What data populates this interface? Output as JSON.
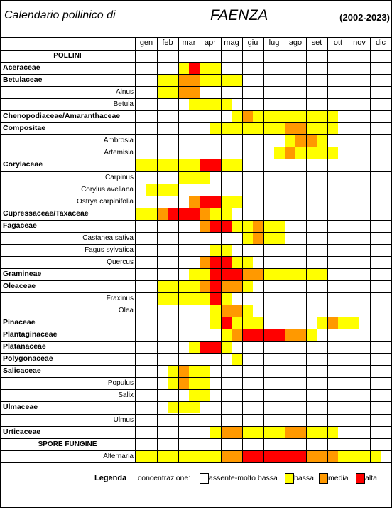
{
  "header": {
    "title_left": "Calendario pollinico di",
    "title_center": "FAENZA",
    "period": "(2002-2023)"
  },
  "months": [
    "gen",
    "feb",
    "mar",
    "apr",
    "mag",
    "giu",
    "lug",
    "ago",
    "set",
    "ott",
    "nov",
    "dic"
  ],
  "colors": {
    "none": "#ffffff",
    "bassa": "#ffff00",
    "media": "#ff9900",
    "alta": "#ff0000"
  },
  "rows": [
    {
      "label": "POLLINI",
      "kind": "section",
      "bars": []
    },
    {
      "label": "Aceraceae",
      "kind": "family",
      "bars": [
        [
          "mar1",
          "bassa"
        ],
        [
          "mar2",
          "alta"
        ],
        [
          "mar3",
          "media"
        ],
        [
          "apr1",
          "bassa"
        ],
        [
          "apr2",
          "bassa"
        ]
      ]
    },
    {
      "label": "Betulaceae",
      "kind": "family",
      "bars": [
        [
          "feb1",
          "bassa"
        ],
        [
          "feb2",
          "bassa"
        ],
        [
          "mar1",
          "media"
        ],
        [
          "mar2",
          "media"
        ],
        [
          "apr1",
          "bassa"
        ],
        [
          "apr2",
          "bassa"
        ],
        [
          "mag1",
          "bassa"
        ],
        [
          "mag2",
          "bassa"
        ]
      ]
    },
    {
      "label": "Alnus",
      "kind": "species",
      "bars": [
        [
          "feb1",
          "bassa"
        ],
        [
          "feb2",
          "bassa"
        ],
        [
          "mar1",
          "media"
        ],
        [
          "mar2",
          "media"
        ]
      ]
    },
    {
      "label": "Betula",
      "kind": "species",
      "bars": [
        [
          "mar2",
          "bassa"
        ],
        [
          "apr1",
          "bassa"
        ],
        [
          "apr2",
          "bassa"
        ],
        [
          "mag1",
          "bassa"
        ]
      ]
    },
    {
      "label": "Chenopodiaceae/Amaranthaceae",
      "kind": "family",
      "bars": [
        [
          "mag2",
          "bassa"
        ],
        [
          "giu1",
          "media"
        ],
        [
          "giu2",
          "bassa"
        ],
        [
          "lug1",
          "bassa"
        ],
        [
          "lug2",
          "bassa"
        ],
        [
          "ago1",
          "bassa"
        ],
        [
          "ago2",
          "bassa"
        ],
        [
          "set1",
          "bassa"
        ],
        [
          "set2",
          "bassa"
        ],
        [
          "ott1",
          "bassa"
        ]
      ]
    },
    {
      "label": "Compositae",
      "kind": "family",
      "bars": [
        [
          "apr2",
          "bassa"
        ],
        [
          "mag1",
          "bassa"
        ],
        [
          "mag2",
          "bassa"
        ],
        [
          "giu1",
          "bassa"
        ],
        [
          "giu2",
          "bassa"
        ],
        [
          "lug1",
          "bassa"
        ],
        [
          "lug2",
          "bassa"
        ],
        [
          "ago1",
          "media"
        ],
        [
          "ago2",
          "media"
        ],
        [
          "set1",
          "bassa"
        ],
        [
          "set2",
          "bassa"
        ],
        [
          "ott1",
          "bassa"
        ]
      ]
    },
    {
      "label": "Ambrosia",
      "kind": "species",
      "bars": [
        [
          "ago1",
          "bassa"
        ],
        [
          "ago2",
          "media"
        ],
        [
          "set1",
          "media"
        ],
        [
          "set2",
          "bassa"
        ]
      ]
    },
    {
      "label": "Artemisia",
      "kind": "species",
      "bars": [
        [
          "lug2",
          "bassa"
        ],
        [
          "ago1",
          "media"
        ],
        [
          "ago2",
          "bassa"
        ],
        [
          "set1",
          "bassa"
        ],
        [
          "set2",
          "bassa"
        ],
        [
          "ott1",
          "bassa"
        ]
      ]
    },
    {
      "label": "Corylaceae",
      "kind": "family",
      "bars": [
        [
          "gen1",
          "bassa"
        ],
        [
          "gen2",
          "bassa"
        ],
        [
          "feb1",
          "bassa"
        ],
        [
          "feb2",
          "bassa"
        ],
        [
          "mar1",
          "bassa"
        ],
        [
          "mar2",
          "bassa"
        ],
        [
          "apr1",
          "alta"
        ],
        [
          "apr2",
          "alta"
        ],
        [
          "mag1",
          "bassa"
        ],
        [
          "mag2",
          "bassa"
        ]
      ]
    },
    {
      "label": "Carpinus",
      "kind": "species",
      "bars": [
        [
          "mar1",
          "bassa"
        ],
        [
          "mar2",
          "bassa"
        ],
        [
          "apr1",
          "bassa"
        ]
      ]
    },
    {
      "label": "Corylus avellana",
      "kind": "species",
      "bars": [
        [
          "gen2",
          "bassa"
        ],
        [
          "feb1",
          "bassa"
        ],
        [
          "feb2",
          "bassa"
        ]
      ]
    },
    {
      "label": "Ostrya carpinifolia",
      "kind": "species",
      "bars": [
        [
          "mar2",
          "media"
        ],
        [
          "apr1",
          "alta"
        ],
        [
          "apr2",
          "alta"
        ],
        [
          "mag1",
          "bassa"
        ],
        [
          "mag2",
          "bassa"
        ]
      ]
    },
    {
      "label": "Cupressaceae/Taxaceae",
      "kind": "family",
      "bars": [
        [
          "gen1",
          "bassa"
        ],
        [
          "gen2",
          "bassa"
        ],
        [
          "feb1",
          "media"
        ],
        [
          "feb2",
          "alta"
        ],
        [
          "mar1",
          "alta"
        ],
        [
          "mar2",
          "alta"
        ],
        [
          "apr1",
          "media"
        ],
        [
          "apr2",
          "bassa"
        ],
        [
          "mag1",
          "bassa"
        ]
      ]
    },
    {
      "label": "Fagaceae",
      "kind": "family",
      "bars": [
        [
          "apr1",
          "media"
        ],
        [
          "apr2",
          "alta"
        ],
        [
          "mag1",
          "alta"
        ],
        [
          "mag2",
          "bassa"
        ],
        [
          "giu1",
          "bassa"
        ],
        [
          "giu2",
          "media"
        ],
        [
          "lug1",
          "bassa"
        ],
        [
          "lug2",
          "bassa"
        ]
      ]
    },
    {
      "label": "Castanea sativa",
      "kind": "species",
      "bars": [
        [
          "giu1",
          "bassa"
        ],
        [
          "giu2",
          "media"
        ],
        [
          "lug1",
          "bassa"
        ],
        [
          "lug2",
          "bassa"
        ]
      ]
    },
    {
      "label": "Fagus sylvatica",
      "kind": "species",
      "bars": [
        [
          "apr2",
          "bassa"
        ],
        [
          "mag1",
          "bassa"
        ]
      ]
    },
    {
      "label": "Quercus",
      "kind": "species",
      "bars": [
        [
          "apr1",
          "media"
        ],
        [
          "apr2",
          "alta"
        ],
        [
          "mag1",
          "alta"
        ],
        [
          "mag2",
          "bassa"
        ],
        [
          "giu1",
          "bassa"
        ]
      ]
    },
    {
      "label": "Gramineae",
      "kind": "family",
      "bars": [
        [
          "mar2",
          "bassa"
        ],
        [
          "apr1",
          "bassa"
        ],
        [
          "apr2",
          "alta"
        ],
        [
          "mag1",
          "alta"
        ],
        [
          "mag2",
          "alta"
        ],
        [
          "giu1",
          "media"
        ],
        [
          "giu2",
          "media"
        ],
        [
          "lug1",
          "bassa"
        ],
        [
          "lug2",
          "bassa"
        ],
        [
          "ago1",
          "bassa"
        ],
        [
          "ago2",
          "bassa"
        ],
        [
          "set1",
          "bassa"
        ],
        [
          "set2",
          "bassa"
        ]
      ]
    },
    {
      "label": "Oleaceae",
      "kind": "family",
      "bars": [
        [
          "feb1",
          "bassa"
        ],
        [
          "feb2",
          "bassa"
        ],
        [
          "mar1",
          "bassa"
        ],
        [
          "mar2",
          "bassa"
        ],
        [
          "apr1",
          "media"
        ],
        [
          "apr2",
          "alta"
        ],
        [
          "mag1",
          "media"
        ],
        [
          "mag2",
          "media"
        ],
        [
          "giu1",
          "bassa"
        ]
      ]
    },
    {
      "label": "Fraxinus",
      "kind": "species",
      "bars": [
        [
          "feb1",
          "bassa"
        ],
        [
          "feb2",
          "bassa"
        ],
        [
          "mar1",
          "bassa"
        ],
        [
          "mar2",
          "bassa"
        ],
        [
          "apr1",
          "bassa"
        ],
        [
          "apr2",
          "alta"
        ],
        [
          "mag1",
          "bassa"
        ]
      ]
    },
    {
      "label": "Olea",
      "kind": "species",
      "bars": [
        [
          "apr2",
          "bassa"
        ],
        [
          "mag1",
          "media"
        ],
        [
          "mag2",
          "media"
        ],
        [
          "giu1",
          "bassa"
        ]
      ]
    },
    {
      "label": "Pinaceae",
      "kind": "family",
      "bars": [
        [
          "apr2",
          "bassa"
        ],
        [
          "mag1",
          "alta"
        ],
        [
          "mag2",
          "bassa"
        ],
        [
          "giu1",
          "bassa"
        ],
        [
          "giu2",
          "bassa"
        ],
        [
          "set2",
          "bassa"
        ],
        [
          "ott1",
          "media"
        ],
        [
          "ott2",
          "bassa"
        ],
        [
          "nov1",
          "bassa"
        ]
      ]
    },
    {
      "label": "Plantaginaceae",
      "kind": "family",
      "bars": [
        [
          "mag1",
          "bassa"
        ],
        [
          "mag2",
          "media"
        ],
        [
          "giu1",
          "alta"
        ],
        [
          "giu2",
          "alta"
        ],
        [
          "lug1",
          "alta"
        ],
        [
          "lug2",
          "alta"
        ],
        [
          "ago1",
          "media"
        ],
        [
          "ago2",
          "media"
        ],
        [
          "set1",
          "bassa"
        ]
      ]
    },
    {
      "label": "Platanaceae",
      "kind": "family",
      "bars": [
        [
          "mar2",
          "bassa"
        ],
        [
          "apr1",
          "alta"
        ],
        [
          "apr2",
          "alta"
        ],
        [
          "mag1",
          "bassa"
        ]
      ]
    },
    {
      "label": "Polygonaceae",
      "kind": "family",
      "bars": [
        [
          "mag2",
          "bassa"
        ]
      ]
    },
    {
      "label": "Salicaceae",
      "kind": "family",
      "bars": [
        [
          "feb2",
          "bassa"
        ],
        [
          "mar1",
          "media"
        ],
        [
          "mar2",
          "bassa"
        ],
        [
          "apr1",
          "bassa"
        ]
      ]
    },
    {
      "label": "Populus",
      "kind": "species",
      "bars": [
        [
          "feb2",
          "bassa"
        ],
        [
          "mar1",
          "media"
        ],
        [
          "mar2",
          "bassa"
        ],
        [
          "apr1",
          "bassa"
        ]
      ]
    },
    {
      "label": "Salix",
      "kind": "species",
      "bars": [
        [
          "mar2",
          "bassa"
        ],
        [
          "apr1",
          "bassa"
        ]
      ]
    },
    {
      "label": "Ulmaceae",
      "kind": "family",
      "bars": [
        [
          "feb2",
          "bassa"
        ],
        [
          "mar1",
          "bassa"
        ],
        [
          "mar2",
          "bassa"
        ]
      ]
    },
    {
      "label": "Ulmus",
      "kind": "species",
      "bars": []
    },
    {
      "label": "Urticaceae",
      "kind": "family",
      "bars": [
        [
          "apr2",
          "bassa"
        ],
        [
          "mag1",
          "media"
        ],
        [
          "mag2",
          "media"
        ],
        [
          "giu1",
          "bassa"
        ],
        [
          "giu2",
          "bassa"
        ],
        [
          "lug1",
          "bassa"
        ],
        [
          "lug2",
          "bassa"
        ],
        [
          "ago1",
          "media"
        ],
        [
          "ago2",
          "media"
        ],
        [
          "set1",
          "bassa"
        ],
        [
          "set2",
          "bassa"
        ],
        [
          "ott1",
          "bassa"
        ]
      ]
    },
    {
      "label": "SPORE FUNGINE",
      "kind": "section",
      "bars": []
    },
    {
      "label": "Alternaria",
      "kind": "species",
      "bars": [
        [
          "gen1",
          "bassa"
        ],
        [
          "gen2",
          "bassa"
        ],
        [
          "feb1",
          "bassa"
        ],
        [
          "feb2",
          "bassa"
        ],
        [
          "mar1",
          "bassa"
        ],
        [
          "mar2",
          "bassa"
        ],
        [
          "apr1",
          "bassa"
        ],
        [
          "apr2",
          "bassa"
        ],
        [
          "mag1",
          "media"
        ],
        [
          "mag2",
          "media"
        ],
        [
          "giu1",
          "alta"
        ],
        [
          "giu2",
          "alta"
        ],
        [
          "lug1",
          "alta"
        ],
        [
          "lug2",
          "alta"
        ],
        [
          "ago1",
          "alta"
        ],
        [
          "ago2",
          "alta"
        ],
        [
          "set1",
          "media"
        ],
        [
          "set2",
          "media"
        ],
        [
          "ott1",
          "media"
        ],
        [
          "ott2",
          "bassa"
        ],
        [
          "nov1",
          "bassa"
        ],
        [
          "nov2",
          "bassa"
        ],
        [
          "dic1",
          "bassa"
        ]
      ]
    }
  ],
  "legend": {
    "title": "Legenda",
    "concentration_label": "concentrazione:",
    "items": [
      {
        "key": "none",
        "label": "assente-molto bassa"
      },
      {
        "key": "bassa",
        "label": "bassa"
      },
      {
        "key": "media",
        "label": "media"
      },
      {
        "key": "alta",
        "label": "alta"
      }
    ]
  }
}
